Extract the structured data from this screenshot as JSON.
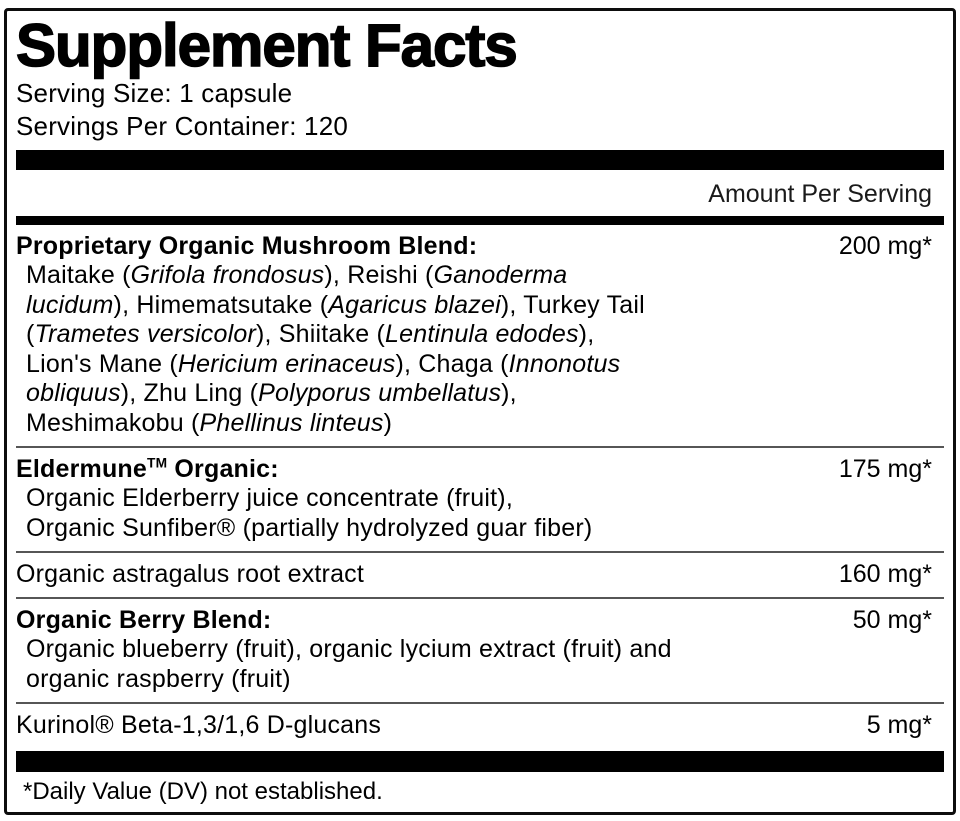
{
  "header": {
    "title": "Supplement Facts",
    "serving_size": "Serving Size: 1 capsule",
    "servings_per_container": "Servings Per Container: 120"
  },
  "columns": {
    "amount_header": "Amount Per Serving"
  },
  "rows": [
    {
      "name_segments": [
        {
          "t": "Proprietary Organic Mushroom Blend:",
          "b": true
        }
      ],
      "amount": "200 mg*",
      "description_lines": [
        [
          {
            "t": "Maitake ("
          },
          {
            "t": "Grifola frondosus",
            "i": true
          },
          {
            "t": "), Reishi ("
          },
          {
            "t": "Ganoderma",
            "i": true
          }
        ],
        [
          {
            "t": "lucidum",
            "i": true
          },
          {
            "t": "), Himematsutake ("
          },
          {
            "t": "Agaricus blazei",
            "i": true
          },
          {
            "t": "), Turkey Tail"
          }
        ],
        [
          {
            "t": "("
          },
          {
            "t": "Trametes versicolor",
            "i": true
          },
          {
            "t": "), Shiitake ("
          },
          {
            "t": "Lentinula edodes",
            "i": true
          },
          {
            "t": "),"
          }
        ],
        [
          {
            "t": "Lion's Mane ("
          },
          {
            "t": "Hericium erinaceus",
            "i": true
          },
          {
            "t": "), Chaga ("
          },
          {
            "t": "Innonotus",
            "i": true
          }
        ],
        [
          {
            "t": "obliquus",
            "i": true
          },
          {
            "t": "), Zhu Ling ("
          },
          {
            "t": "Polyporus umbellatus",
            "i": true
          },
          {
            "t": "),"
          }
        ],
        [
          {
            "t": "Meshimakobu ("
          },
          {
            "t": "Phellinus linteus",
            "i": true
          },
          {
            "t": ")"
          }
        ]
      ]
    },
    {
      "name_segments": [
        {
          "t": "Eldermune",
          "b": true
        },
        {
          "t": "TM",
          "b": true,
          "sup": true
        },
        {
          "t": " Organic:",
          "b": true
        }
      ],
      "amount": "175 mg*",
      "description_lines": [
        [
          {
            "t": "Organic Elderberry juice concentrate (fruit),"
          }
        ],
        [
          {
            "t": "Organic Sunfiber® (partially hydrolyzed guar fiber)"
          }
        ]
      ]
    },
    {
      "name_segments": [
        {
          "t": "Organic astragalus root extract"
        }
      ],
      "amount": "160 mg*",
      "description_lines": []
    },
    {
      "name_segments": [
        {
          "t": "Organic Berry Blend:",
          "b": true
        }
      ],
      "amount": "50 mg*",
      "description_lines": [
        [
          {
            "t": "Organic blueberry (fruit), organic lycium extract (fruit) and"
          }
        ],
        [
          {
            "t": "organic raspberry (fruit)"
          }
        ]
      ]
    },
    {
      "name_segments": [
        {
          "t": "Kurinol® Beta-1,3/1,6 D-glucans"
        }
      ],
      "amount": "5 mg*",
      "description_lines": []
    }
  ],
  "footnote": "*Daily Value (DV) not established.",
  "colors": {
    "ink": "#000000",
    "background": "#ffffff",
    "separator": "#565656",
    "heavy_bar": "#000000"
  }
}
